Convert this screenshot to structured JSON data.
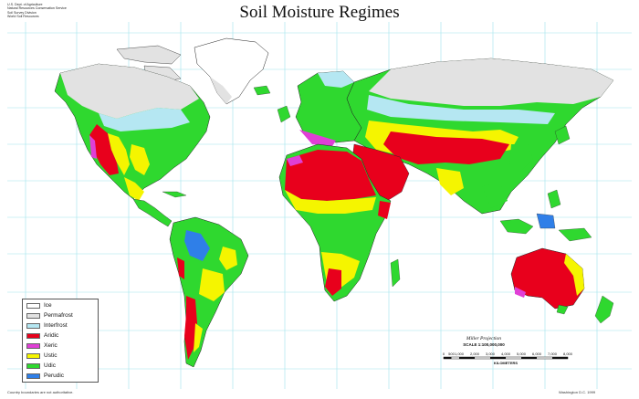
{
  "title": "Soil Moisture Regimes",
  "agency": [
    "U.S. Dept. of Agriculture",
    "Natural Resources Conservation Service",
    "Soil Survey Division",
    "World Soil Resources"
  ],
  "legend": {
    "items": [
      {
        "label": "Ice",
        "color": "#ffffff"
      },
      {
        "label": "Permafrost",
        "color": "#e2e2e2"
      },
      {
        "label": "Interfrost",
        "color": "#b5e7f2"
      },
      {
        "label": "Aridic",
        "color": "#e8001c"
      },
      {
        "label": "Xeric",
        "color": "#e03fd6"
      },
      {
        "label": "Ustic",
        "color": "#f5f500"
      },
      {
        "label": "Udic",
        "color": "#2fd82f"
      },
      {
        "label": "Perudic",
        "color": "#2f7fe8"
      }
    ]
  },
  "projection": "Miller Projection",
  "scale": {
    "label": "SCALE 1:100,000,000",
    "ticks": [
      "0",
      "500",
      "1,000",
      "2,000",
      "3,000",
      "4,000",
      "5,000",
      "6,000",
      "7,000",
      "8,000"
    ],
    "unit": "KILOMETERS"
  },
  "footer": {
    "left": "Country boundaries are not authoritative.",
    "right": "Washington D.C. 1999"
  },
  "colors": {
    "ocean": "#ffffff",
    "graticule": "#9fe3ec",
    "border": "#222222"
  }
}
